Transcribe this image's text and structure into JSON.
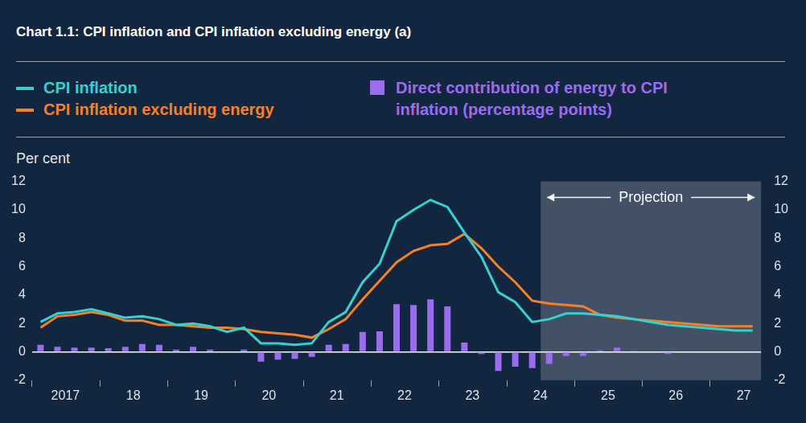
{
  "chart_data": {
    "type": "bar",
    "title": "Chart 1.1: CPI inflation and CPI inflation excluding energy (a)",
    "y_label": "Per cent",
    "categories": [
      null,
      "2017",
      null,
      null,
      null,
      "18",
      null,
      null,
      null,
      "19",
      null,
      null,
      null,
      "20",
      null,
      null,
      null,
      "21",
      null,
      null,
      null,
      "22",
      null,
      null,
      null,
      "23",
      null,
      null,
      null,
      "24",
      null,
      null,
      null,
      "25",
      null,
      null,
      null,
      "26",
      null,
      null,
      null,
      "27",
      null
    ],
    "series": [
      {
        "name": "CPI inflation",
        "type": "line",
        "color": "#2fd3cf",
        "values": [
          2.1,
          2.7,
          2.8,
          3.0,
          2.7,
          2.4,
          2.5,
          2.3,
          1.9,
          2.0,
          1.8,
          1.4,
          1.7,
          0.6,
          0.6,
          0.5,
          0.6,
          2.1,
          2.8,
          4.9,
          6.2,
          9.2,
          10.0,
          10.7,
          10.2,
          8.4,
          6.7,
          4.2,
          3.5,
          2.1,
          2.3,
          2.7,
          2.7,
          2.6,
          2.5,
          2.3,
          2.1,
          1.9,
          1.8,
          1.7,
          1.6,
          1.5,
          1.5
        ]
      },
      {
        "name": "CPI inflation excluding energy",
        "type": "line",
        "color": "#f58025",
        "values": [
          1.7,
          2.5,
          2.6,
          2.8,
          2.6,
          2.2,
          2.2,
          1.9,
          1.9,
          1.8,
          1.7,
          1.7,
          1.6,
          1.4,
          1.3,
          1.2,
          1.0,
          1.6,
          2.3,
          3.7,
          5.0,
          6.3,
          7.1,
          7.5,
          7.6,
          8.3,
          7.3,
          6.0,
          4.9,
          3.6,
          3.4,
          3.3,
          3.2,
          2.6,
          2.4,
          2.3,
          2.2,
          2.1,
          2.0,
          1.9,
          1.8,
          1.8,
          1.8
        ]
      },
      {
        "name": "Direct contribution of energy to CPI inflation (percentage points)",
        "type": "bar",
        "color": "#9a6cf0",
        "values": [
          0.5,
          0.35,
          0.3,
          0.3,
          0.25,
          0.35,
          0.55,
          0.5,
          0.15,
          0.35,
          0.15,
          -0.05,
          0.15,
          -0.7,
          -0.55,
          -0.5,
          -0.35,
          0.5,
          0.55,
          1.4,
          1.45,
          3.35,
          3.3,
          3.7,
          3.2,
          0.65,
          -0.15,
          -1.35,
          -1.05,
          -1.15,
          -0.85,
          -0.3,
          -0.3,
          0.1,
          0.3,
          0.05,
          0.0,
          -0.15,
          -0.05,
          -0.05,
          -0.05,
          -0.05,
          -0.05
        ]
      }
    ],
    "ylim": [
      -2,
      12
    ],
    "yticks": [
      -2,
      0,
      2,
      4,
      6,
      8,
      10,
      12
    ],
    "y2lim": [
      -2,
      12
    ],
    "y2ticks": [
      -2,
      0,
      2,
      4,
      6,
      8,
      10,
      12
    ],
    "grid": false,
    "legend": "top",
    "annotations": [
      {
        "text": "Projection",
        "start_index": 30,
        "end_index": 42
      }
    ]
  }
}
